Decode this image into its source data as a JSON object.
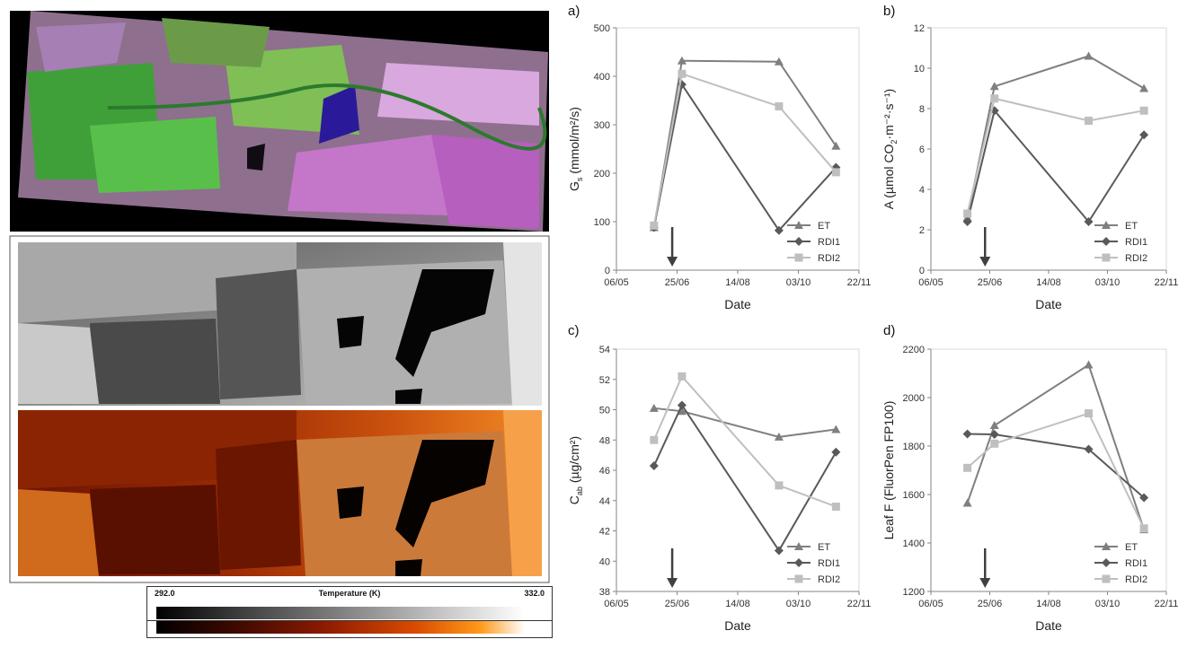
{
  "colorbar": {
    "min": "292.0",
    "max": "332.0",
    "title": "Temperature (K)"
  },
  "panel_letters": [
    "a)",
    "b)",
    "c)",
    "d)"
  ],
  "chart_data": [
    {
      "type": "line",
      "title": "a)",
      "xlabel": "Date",
      "ylabel": "Gs (mmol/m²/s)",
      "ylabel_main": "G",
      "ylabel_sub": "s",
      "ylabel_rest": " (mmol/m²/s)",
      "x_ticks": [
        "06/05",
        "25/06",
        "14/08",
        "03/10",
        "22/11"
      ],
      "ylim": [
        0,
        500
      ],
      "y_ticks": [
        "0",
        "100",
        "200",
        "300",
        "400",
        "500"
      ],
      "x": [
        "06/06",
        "29/06",
        "17/09",
        "03/11"
      ],
      "series": [
        {
          "name": "ET",
          "values": [
            88,
            432,
            430,
            256
          ]
        },
        {
          "name": "RDI1",
          "values": [
            88,
            383,
            82,
            212
          ]
        },
        {
          "name": "RDI2",
          "values": [
            92,
            405,
            338,
            202
          ]
        }
      ],
      "arrow_date": "21/06",
      "legend": "bottom-right"
    },
    {
      "type": "line",
      "title": "b)",
      "xlabel": "Date",
      "ylabel": "A (µmol CO₂·m⁻²·s⁻¹)",
      "ylabel_main": "A (µmol CO",
      "ylabel_sub": "2",
      "ylabel_rest": "·m⁻²·s⁻¹)",
      "x_ticks": [
        "06/05",
        "25/06",
        "14/08",
        "03/10",
        "22/11"
      ],
      "ylim": [
        0,
        12
      ],
      "y_ticks": [
        "0",
        "2",
        "4",
        "6",
        "8",
        "10",
        "12"
      ],
      "x": [
        "06/06",
        "29/06",
        "17/09",
        "03/11"
      ],
      "series": [
        {
          "name": "ET",
          "values": [
            2.6,
            9.1,
            10.6,
            9.0
          ]
        },
        {
          "name": "RDI1",
          "values": [
            2.4,
            7.9,
            2.4,
            6.7
          ]
        },
        {
          "name": "RDI2",
          "values": [
            2.8,
            8.5,
            7.4,
            7.9
          ]
        }
      ],
      "arrow_date": "21/06",
      "legend": "bottom-right"
    },
    {
      "type": "line",
      "title": "c)",
      "xlabel": "Date",
      "ylabel": "Cab (µg/cm²)",
      "ylabel_main": "C",
      "ylabel_sub": "ab",
      "ylabel_rest": " (µg/cm²)",
      "x_ticks": [
        "06/05",
        "25/06",
        "14/08",
        "03/10",
        "22/11"
      ],
      "ylim": [
        38,
        54
      ],
      "y_ticks": [
        "38",
        "40",
        "42",
        "44",
        "46",
        "48",
        "50",
        "52",
        "54"
      ],
      "x": [
        "06/06",
        "29/06",
        "17/09",
        "03/11"
      ],
      "series": [
        {
          "name": "ET",
          "values": [
            50.1,
            49.9,
            48.2,
            48.7
          ]
        },
        {
          "name": "RDI1",
          "values": [
            46.3,
            50.3,
            40.7,
            47.2
          ]
        },
        {
          "name": "RDI2",
          "values": [
            48.0,
            52.2,
            45.0,
            43.6
          ]
        }
      ],
      "arrow_date": "21/06",
      "legend": "bottom-right"
    },
    {
      "type": "line",
      "title": "d)",
      "xlabel": "Date",
      "ylabel": "Leaf F (FluorPen FP100)",
      "ylabel_main": "Leaf F (FluorPen FP100)",
      "ylabel_sub": "",
      "ylabel_rest": "",
      "x_ticks": [
        "06/05",
        "25/06",
        "14/08",
        "03/10",
        "22/11"
      ],
      "ylim": [
        1200,
        2200
      ],
      "y_ticks": [
        "1200",
        "1400",
        "1600",
        "1800",
        "2000",
        "2200"
      ],
      "x": [
        "06/06",
        "29/06",
        "17/09",
        "03/11"
      ],
      "series": [
        {
          "name": "ET",
          "values": [
            1565,
            1885,
            2135,
            1455
          ]
        },
        {
          "name": "RDI1",
          "values": [
            1850,
            1848,
            1787,
            1587
          ]
        },
        {
          "name": "RDI2",
          "values": [
            1710,
            1810,
            1935,
            1460
          ]
        }
      ],
      "arrow_date": "21/06",
      "legend": "bottom-right"
    }
  ],
  "series_style": {
    "ET": {
      "color": "#7f7f7f",
      "marker": "triangle"
    },
    "RDI1": {
      "color": "#595959",
      "marker": "diamond"
    },
    "RDI2": {
      "color": "#bfbfbf",
      "marker": "square"
    }
  }
}
